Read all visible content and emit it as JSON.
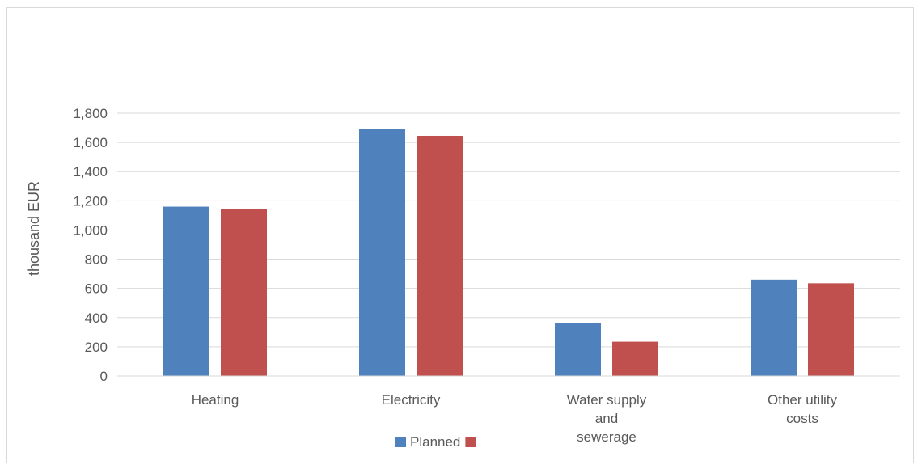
{
  "chart_data": {
    "type": "bar",
    "title": "",
    "xlabel": "",
    "ylabel": "thousand EUR",
    "ylim": [
      0,
      1800
    ],
    "yticks": [
      0,
      200,
      400,
      600,
      800,
      1000,
      1200,
      1400,
      1600,
      1800
    ],
    "ytick_labels": [
      "0",
      "200",
      "400",
      "600",
      "800",
      "1,000",
      "1,200",
      "1,400",
      "1,600",
      "1,800"
    ],
    "categories": [
      [
        "Heating"
      ],
      [
        "Electricity"
      ],
      [
        "Water supply",
        "and",
        "sewerage"
      ],
      [
        "Other utility",
        "costs"
      ]
    ],
    "series": [
      {
        "name": "Planned",
        "color": "#4f81bd",
        "values": [
          1160,
          1690,
          365,
          660
        ]
      },
      {
        "name": "",
        "color": "#c0504d",
        "values": [
          1145,
          1645,
          235,
          635
        ]
      }
    ],
    "grid": true,
    "legend": "bottom"
  }
}
